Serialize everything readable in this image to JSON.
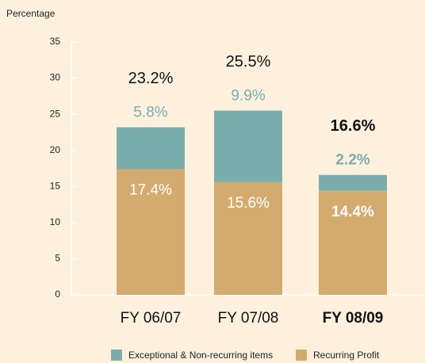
{
  "chart_data": {
    "type": "stacked_bar",
    "y_label": "Percentage",
    "categories": [
      "FY 06/07",
      "FY 07/08",
      "FY 08/09"
    ],
    "highlight": 2,
    "series": [
      {
        "name": "Recurring Profit",
        "color": "#d4ab6f",
        "values": [
          17.4,
          15.6,
          14.4
        ],
        "value_labels": [
          "17.4%",
          "15.6%",
          "14.4%"
        ]
      },
      {
        "name": "Exceptional & Non-recurring items",
        "color": "#7aaead",
        "values": [
          5.8,
          9.9,
          2.2
        ],
        "value_labels": [
          "5.8%",
          "9.9%",
          "2.2%"
        ]
      }
    ],
    "totals": [
      23.2,
      25.5,
      16.6
    ],
    "total_labels": [
      "23.2%",
      "25.5%",
      "16.6%"
    ],
    "ylim": [
      0,
      35
    ],
    "yticks": [
      0,
      5,
      10,
      15,
      20,
      25,
      30,
      35
    ]
  }
}
